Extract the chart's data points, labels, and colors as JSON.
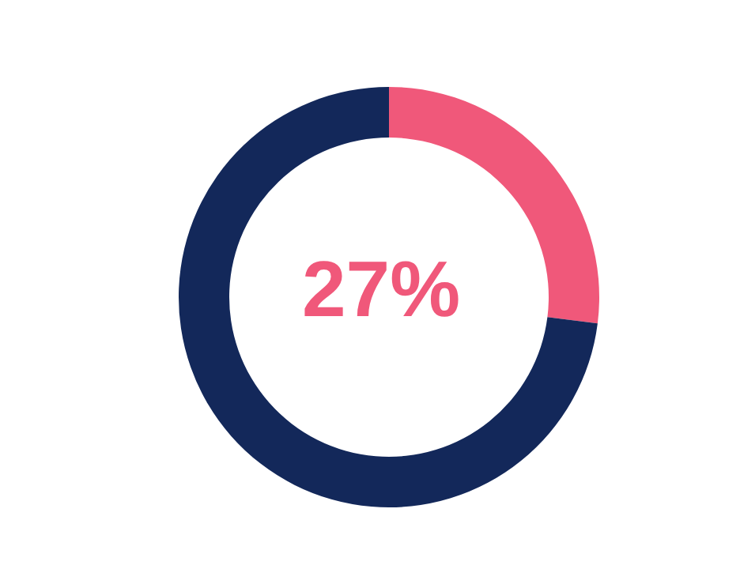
{
  "chart_data": {
    "type": "donut",
    "categories": [
      null,
      null
    ],
    "values": [
      27,
      73
    ],
    "colors": [
      "#f0587a",
      "#13285a"
    ],
    "annotations": [
      "27%"
    ]
  }
}
